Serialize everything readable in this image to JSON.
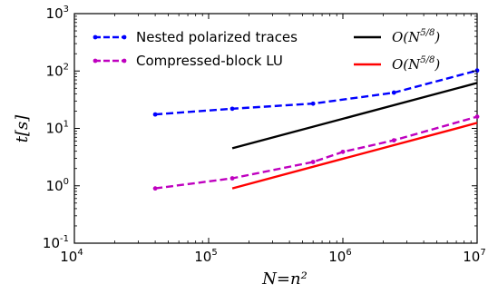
{
  "chart_data": {
    "type": "line",
    "xscale": "log",
    "yscale": "log",
    "xlim": [
      10000,
      10000000
    ],
    "ylim": [
      0.1,
      1000
    ],
    "xlabel": "N=n²",
    "ylabel": "t[s]",
    "x_ticks": [
      {
        "value": 10000,
        "base": "10",
        "exp": "4"
      },
      {
        "value": 100000,
        "base": "10",
        "exp": "5"
      },
      {
        "value": 1000000,
        "base": "10",
        "exp": "6"
      },
      {
        "value": 10000000,
        "base": "10",
        "exp": "7"
      }
    ],
    "y_ticks": [
      {
        "value": 0.1,
        "base": "10",
        "exp": "-1"
      },
      {
        "value": 1,
        "base": "10",
        "exp": "0"
      },
      {
        "value": 10,
        "base": "10",
        "exp": "1"
      },
      {
        "value": 100,
        "base": "10",
        "exp": "2"
      },
      {
        "value": 1000,
        "base": "10",
        "exp": "3"
      }
    ],
    "legend_position": "top",
    "series": [
      {
        "name": "Nested polarized traces",
        "color": "#0000ff",
        "style": "dashed",
        "markers": true,
        "x": [
          40000,
          150000,
          600000,
          2400000,
          10000000
        ],
        "y": [
          17.5,
          22,
          27,
          42,
          102
        ]
      },
      {
        "name": "Compressed-block LU",
        "color": "#bf00bf",
        "style": "dashed",
        "markers": true,
        "x": [
          40000,
          150000,
          600000,
          1000000,
          2400000,
          10000000
        ],
        "y": [
          0.9,
          1.35,
          2.6,
          3.9,
          6.2,
          16
        ]
      },
      {
        "name": "O(N^{5/8})",
        "name_base": "O(N",
        "name_exp": "5/8",
        "name_close": ")",
        "color": "#000000",
        "style": "solid",
        "markers": false,
        "x": [
          150000,
          10000000
        ],
        "y": [
          4.5,
          62
        ]
      },
      {
        "name": "O(N^{5/8})",
        "name_base": "O(N",
        "name_exp": "5/8",
        "name_close": ")",
        "color": "#ff0000",
        "style": "solid",
        "markers": false,
        "x": [
          150000,
          10000000
        ],
        "y": [
          0.9,
          12.5
        ]
      }
    ]
  }
}
